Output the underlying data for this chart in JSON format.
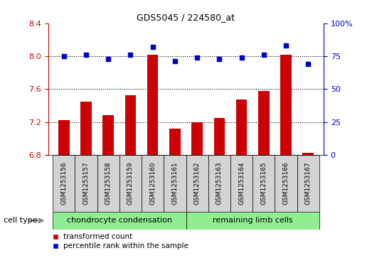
{
  "title": "GDS5045 / 224580_at",
  "samples": [
    "GSM1253156",
    "GSM1253157",
    "GSM1253158",
    "GSM1253159",
    "GSM1253160",
    "GSM1253161",
    "GSM1253162",
    "GSM1253163",
    "GSM1253164",
    "GSM1253165",
    "GSM1253166",
    "GSM1253167"
  ],
  "red_values": [
    7.22,
    7.45,
    7.28,
    7.52,
    8.02,
    7.12,
    7.2,
    7.25,
    7.47,
    7.58,
    8.02,
    6.82
  ],
  "blue_values": [
    75,
    76,
    73,
    76,
    82,
    71,
    74,
    73,
    74,
    76,
    83,
    69
  ],
  "ylim_left": [
    6.8,
    8.4
  ],
  "ylim_right": [
    0,
    100
  ],
  "yticks_left": [
    6.8,
    7.2,
    7.6,
    8.0,
    8.4
  ],
  "yticks_right": [
    0,
    25,
    50,
    75,
    100
  ],
  "ytick_labels_right": [
    "0",
    "25",
    "50",
    "75",
    "100%"
  ],
  "group1_label": "chondrocyte condensation",
  "group2_label": "remaining limb cells",
  "group1_count": 6,
  "group2_count": 6,
  "cell_type_label": "cell type",
  "legend1": "transformed count",
  "legend2": "percentile rank within the sample",
  "bar_color": "#cc0000",
  "dot_color": "#0000cc",
  "green_bg": "#90EE90",
  "cell_bg": "#d3d3d3",
  "bar_width": 0.5
}
